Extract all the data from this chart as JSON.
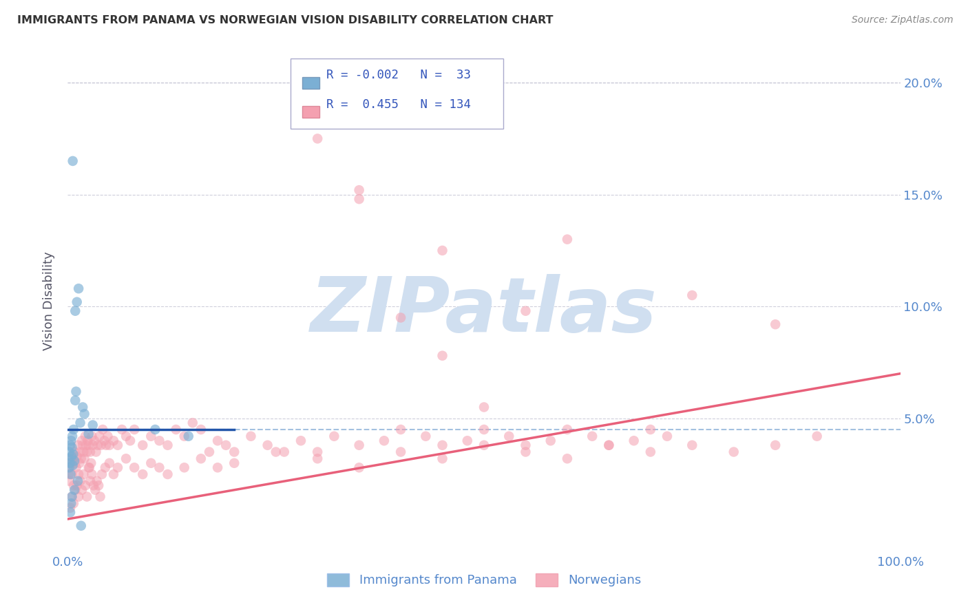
{
  "title": "IMMIGRANTS FROM PANAMA VS NORWEGIAN VISION DISABILITY CORRELATION CHART",
  "source": "Source: ZipAtlas.com",
  "ylabel": "Vision Disability",
  "xlim": [
    0,
    100
  ],
  "ylim": [
    -1.0,
    21.5
  ],
  "legend_r_panama": "-0.002",
  "legend_n_panama": "33",
  "legend_r_norwegian": "0.455",
  "legend_n_norwegian": "134",
  "blue_color": "#7BAFD4",
  "pink_color": "#F4A0B0",
  "blue_line_color": "#2255AA",
  "pink_line_color": "#E8607A",
  "axis_label_color": "#5588CC",
  "watermark_color": "#D0DFF0",
  "panama_x": [
    0.1,
    0.15,
    0.2,
    0.25,
    0.3,
    0.35,
    0.4,
    0.45,
    0.5,
    0.55,
    0.6,
    0.65,
    0.7,
    0.8,
    0.9,
    1.0,
    1.1,
    1.3,
    1.5,
    1.8,
    2.0,
    2.5,
    3.0,
    0.3,
    0.4,
    0.5,
    0.8,
    1.2,
    10.5,
    14.5,
    0.6,
    0.9,
    1.6
  ],
  "panama_y": [
    3.2,
    2.8,
    3.5,
    3.0,
    3.8,
    2.5,
    4.0,
    3.3,
    3.7,
    4.2,
    2.9,
    3.4,
    4.5,
    3.1,
    5.8,
    6.2,
    10.2,
    10.8,
    4.8,
    5.5,
    5.2,
    4.3,
    4.7,
    0.8,
    1.2,
    1.5,
    1.8,
    2.2,
    4.5,
    4.2,
    16.5,
    9.8,
    0.2
  ],
  "norwegian_x": [
    0.1,
    0.2,
    0.3,
    0.4,
    0.5,
    0.6,
    0.7,
    0.8,
    0.9,
    1.0,
    1.1,
    1.2,
    1.3,
    1.4,
    1.5,
    1.6,
    1.7,
    1.8,
    1.9,
    2.0,
    2.1,
    2.2,
    2.3,
    2.4,
    2.5,
    2.6,
    2.7,
    2.8,
    2.9,
    3.0,
    3.2,
    3.4,
    3.6,
    3.8,
    4.0,
    4.2,
    4.4,
    4.6,
    4.8,
    5.0,
    5.5,
    6.0,
    6.5,
    7.0,
    7.5,
    8.0,
    9.0,
    10.0,
    11.0,
    12.0,
    13.0,
    14.0,
    15.0,
    16.0,
    17.0,
    18.0,
    19.0,
    20.0,
    22.0,
    24.0,
    26.0,
    28.0,
    30.0,
    32.0,
    35.0,
    38.0,
    40.0,
    43.0,
    45.0,
    48.0,
    50.0,
    53.0,
    55.0,
    58.0,
    60.0,
    63.0,
    65.0,
    68.0,
    70.0,
    72.0,
    0.3,
    0.5,
    0.7,
    0.9,
    1.1,
    1.3,
    1.5,
    1.7,
    1.9,
    2.1,
    2.3,
    2.5,
    2.7,
    2.9,
    3.1,
    3.3,
    3.5,
    3.7,
    3.9,
    4.1,
    4.5,
    5.0,
    5.5,
    6.0,
    7.0,
    8.0,
    9.0,
    10.0,
    11.0,
    12.0,
    14.0,
    16.0,
    18.0,
    20.0,
    25.0,
    30.0,
    35.0,
    40.0,
    45.0,
    50.0,
    55.0,
    60.0,
    65.0,
    70.0,
    75.0,
    80.0,
    85.0,
    90.0,
    30.0,
    35.0,
    40.0,
    45.0,
    50.0,
    55.0
  ],
  "norwegian_y": [
    2.5,
    2.2,
    2.8,
    3.0,
    2.5,
    3.2,
    2.0,
    3.5,
    3.0,
    2.8,
    3.3,
    3.8,
    2.5,
    3.0,
    3.5,
    3.2,
    4.0,
    3.8,
    3.5,
    3.2,
    4.2,
    3.8,
    3.5,
    4.0,
    3.8,
    2.8,
    3.5,
    3.0,
    4.2,
    3.8,
    4.0,
    3.5,
    3.8,
    4.2,
    3.8,
    4.5,
    4.0,
    3.8,
    4.2,
    3.8,
    4.0,
    3.8,
    4.5,
    4.2,
    4.0,
    4.5,
    3.8,
    4.2,
    4.0,
    3.8,
    4.5,
    4.2,
    4.8,
    4.5,
    3.5,
    4.0,
    3.8,
    3.5,
    4.2,
    3.8,
    3.5,
    4.0,
    3.5,
    4.2,
    3.8,
    4.0,
    4.5,
    4.2,
    3.8,
    4.0,
    4.5,
    4.2,
    3.8,
    4.0,
    4.5,
    4.2,
    3.8,
    4.0,
    4.5,
    4.2,
    1.0,
    1.5,
    1.2,
    1.8,
    2.0,
    1.5,
    2.2,
    1.8,
    2.5,
    2.0,
    1.5,
    2.8,
    2.2,
    2.5,
    2.0,
    1.8,
    2.2,
    2.0,
    1.5,
    2.5,
    2.8,
    3.0,
    2.5,
    2.8,
    3.2,
    2.8,
    2.5,
    3.0,
    2.8,
    2.5,
    2.8,
    3.2,
    2.8,
    3.0,
    3.5,
    3.2,
    2.8,
    3.5,
    3.2,
    3.8,
    3.5,
    3.2,
    3.8,
    3.5,
    3.8,
    3.5,
    3.8,
    4.2,
    17.5,
    14.8,
    9.5,
    12.5,
    5.5,
    9.8
  ],
  "pink_line_x": [
    0,
    100
  ],
  "pink_line_y": [
    0.5,
    7.0
  ],
  "blue_line_x": [
    0,
    20
  ],
  "blue_line_y": [
    4.5,
    4.5
  ],
  "dashed_line_y": 4.5,
  "norwegian_outlier_x": [
    35.0,
    60.0,
    75.0,
    85.0,
    45.0
  ],
  "norwegian_outlier_y": [
    15.2,
    13.0,
    10.5,
    9.2,
    7.8
  ]
}
